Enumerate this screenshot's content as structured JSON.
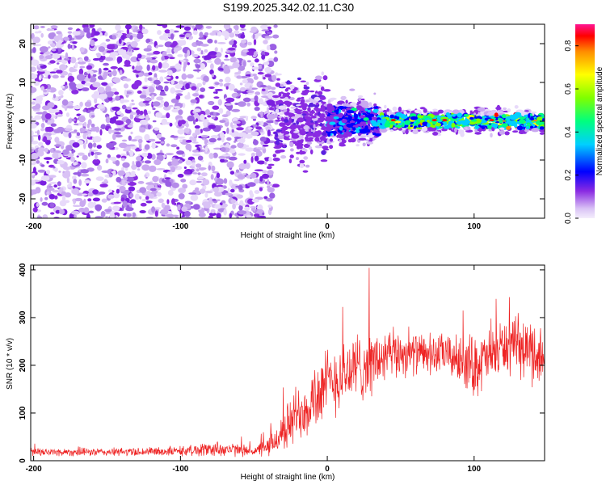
{
  "title": "S199.2025.342.02.11.C30",
  "chart_data": [
    {
      "type": "heatmap",
      "title": "S199.2025.342.02.11.C30",
      "xlabel": "Height of straight line (km)",
      "ylabel": "Frequency (Hz)",
      "xlim": [
        -202,
        148
      ],
      "ylim": [
        -25,
        25
      ],
      "xticks": [
        -200,
        -100,
        0,
        100
      ],
      "yticks": [
        -20,
        -10,
        0,
        10,
        20
      ],
      "colorbar": {
        "label": "Normalized spectral amplitude",
        "range": [
          0,
          0.9
        ],
        "ticks": [
          0.0,
          0.2,
          0.4,
          0.6,
          0.8
        ],
        "colors": [
          "#f4eefc",
          "#8a2be2",
          "#0000ff",
          "#00cfff",
          "#00ff7f",
          "#7fff00",
          "#ffff00",
          "#ff8c00",
          "#ff0000",
          "#ff1493"
        ]
      },
      "regions": [
        {
          "x_range": [
            -202,
            -35
          ],
          "freq_half_width": 25,
          "peak_amplitude": 0.12,
          "description": "broadband noise"
        },
        {
          "x_range": [
            -35,
            0
          ],
          "freq_half_width": 10,
          "peak_amplitude": 0.2
        },
        {
          "x_range": [
            0,
            35
          ],
          "freq_half_width": 6,
          "peak_amplitude": 0.4
        },
        {
          "x_range": [
            35,
            148
          ],
          "freq_half_width": 3,
          "peak_amplitude": 0.85
        }
      ]
    },
    {
      "type": "line",
      "xlabel": "Height of straight line (km)",
      "ylabel": "SNR (10 * v/v)",
      "xlim": [
        -202,
        148
      ],
      "ylim": [
        0,
        410
      ],
      "xticks": [
        -200,
        -100,
        0,
        100
      ],
      "yticks": [
        0,
        100,
        200,
        300,
        400
      ],
      "color": "#ee2222",
      "series": [
        {
          "name": "SNR",
          "x": [
            -202,
            -150,
            -100,
            -75,
            -50,
            -40,
            -30,
            -20,
            -10,
            0,
            10,
            20,
            30,
            40,
            50,
            60,
            70,
            80,
            90,
            100,
            110,
            120,
            130,
            140,
            148
          ],
          "mean": [
            18,
            18,
            20,
            25,
            20,
            28,
            60,
            100,
            130,
            160,
            180,
            195,
            205,
            215,
            225,
            225,
            220,
            225,
            210,
            200,
            215,
            240,
            235,
            230,
            210
          ],
          "spread": [
            10,
            10,
            12,
            20,
            12,
            25,
            50,
            80,
            90,
            90,
            90,
            90,
            80,
            70,
            60,
            50,
            50,
            50,
            60,
            80,
            70,
            70,
            70,
            80,
            90
          ]
        }
      ]
    }
  ]
}
